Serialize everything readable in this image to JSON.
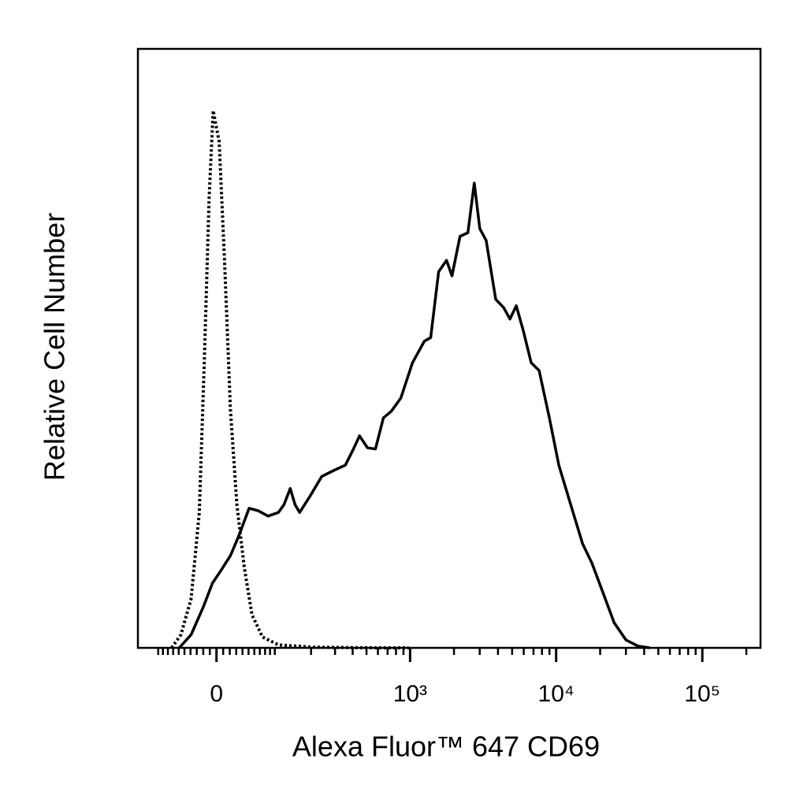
{
  "chart_data": {
    "type": "line",
    "xlabel": "Alexa Fluor™ 647 CD69",
    "ylabel": "Relative Cell Number",
    "xscale": "biexponential",
    "xlim": [
      -150,
      250000
    ],
    "ylim": [
      0,
      100
    ],
    "xticks": [
      {
        "value": 0,
        "label": "0"
      },
      {
        "value": 1000,
        "label": "10³"
      },
      {
        "value": 10000,
        "label": "10⁴"
      },
      {
        "value": 100000,
        "label": "10⁵"
      }
    ],
    "minor_xticks": [
      -100,
      -90,
      -80,
      -70,
      -60,
      -50,
      -40,
      -30,
      -20,
      -10,
      10,
      20,
      30,
      40,
      50,
      60,
      70,
      80,
      90,
      100,
      200,
      300,
      400,
      500,
      600,
      700,
      800,
      900,
      2000,
      3000,
      4000,
      5000,
      6000,
      7000,
      8000,
      9000,
      20000,
      30000,
      40000,
      50000,
      60000,
      70000,
      80000,
      90000,
      200000
    ],
    "series": [
      {
        "color": "#000000",
        "style": "dotted",
        "x": [
          -73,
          -56,
          -39,
          -26,
          -18,
          -11,
          -5,
          4,
          12,
          21,
          31,
          43,
          56,
          75,
          108,
          209,
          592,
          980
        ],
        "values": [
          0,
          2.2,
          8.2,
          22.6,
          48.9,
          75.3,
          89.7,
          84.5,
          64.7,
          39.7,
          23.9,
          13.4,
          5.5,
          1.8,
          0.5,
          0.1,
          0,
          0
        ]
      },
      {
        "color": "#000000",
        "style": "solid",
        "x": [
          -59,
          -39,
          -20,
          -6,
          6,
          21,
          34,
          51,
          67,
          86,
          108,
          121,
          137,
          150,
          163,
          196,
          240,
          293,
          355,
          405,
          447,
          508,
          577,
          655,
          742,
          863,
          1039,
          1254,
          1385,
          1570,
          1777,
          1938,
          2200,
          2491,
          2753,
          3003,
          3322,
          3860,
          4373,
          4830,
          5335,
          5965,
          6750,
          7646,
          8990,
          10430,
          12580,
          15150,
          17590,
          20690,
          24950,
          30080,
          36230,
          43700
        ],
        "values": [
          0,
          2.2,
          6.8,
          10.8,
          12.8,
          15.4,
          18.7,
          23.3,
          22.9,
          22.0,
          22.6,
          23.9,
          26.6,
          23.9,
          22.6,
          25.3,
          28.6,
          29.6,
          30.5,
          33.2,
          35.4,
          33.4,
          33.2,
          38.4,
          39.5,
          41.7,
          47.6,
          51.2,
          51.8,
          62.8,
          64.7,
          62.1,
          68.7,
          69.3,
          77.6,
          70.0,
          68.0,
          58.2,
          56.8,
          54.9,
          57.1,
          52.9,
          47.6,
          46.3,
          38.4,
          30.5,
          23.9,
          17.4,
          14.1,
          9.5,
          4.2,
          1.3,
          0.3,
          0
        ]
      }
    ]
  }
}
